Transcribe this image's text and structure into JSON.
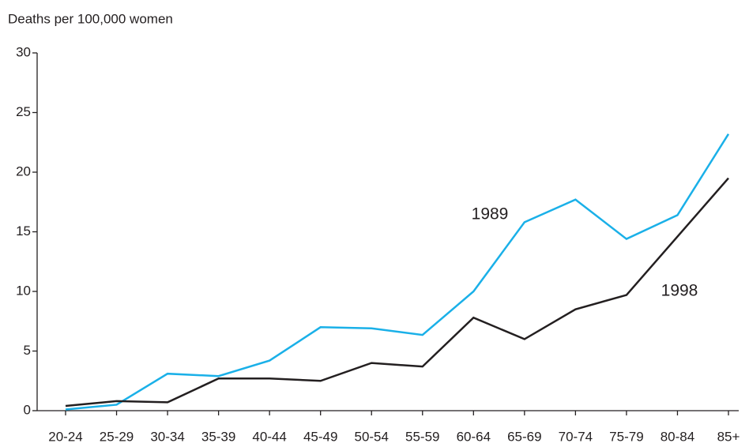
{
  "chart_data": {
    "type": "line",
    "y_label": "Deaths per 100,000 women",
    "categories": [
      "20-24",
      "25-29",
      "30-34",
      "35-39",
      "40-44",
      "45-49",
      "50-54",
      "55-59",
      "60-64",
      "65-69",
      "70-74",
      "75-79",
      "80-84",
      "85+"
    ],
    "series": [
      {
        "name": "1989",
        "color": "#1ab0e8",
        "values": [
          0.1,
          0.5,
          3.1,
          2.9,
          4.2,
          7.0,
          6.9,
          6.35,
          10.0,
          15.8,
          17.7,
          14.4,
          16.4,
          23.2
        ]
      },
      {
        "name": "1998",
        "color": "#231f20",
        "values": [
          0.4,
          0.8,
          0.7,
          2.7,
          2.7,
          2.5,
          4.0,
          3.7,
          7.8,
          6.0,
          8.5,
          9.7,
          14.6,
          19.5
        ]
      }
    ],
    "ylim": [
      0,
      30
    ],
    "yticks": [
      0,
      5,
      10,
      15,
      20,
      25,
      30
    ],
    "grid": false
  }
}
